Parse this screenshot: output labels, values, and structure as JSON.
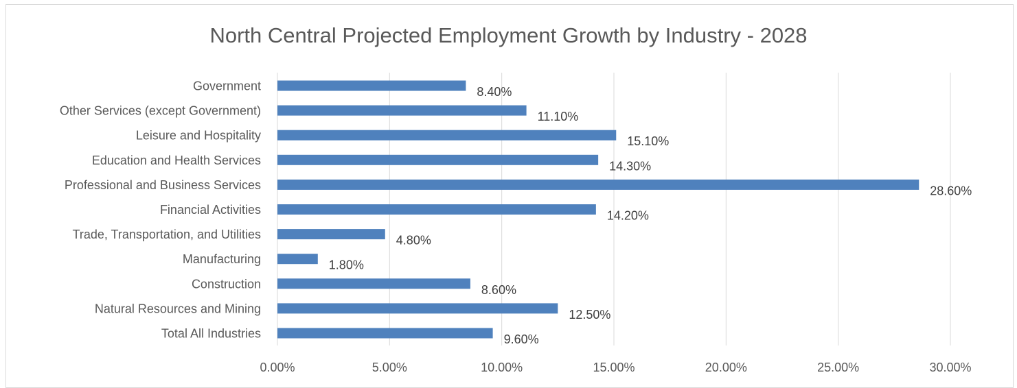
{
  "chart_data": {
    "type": "bar",
    "orientation": "horizontal",
    "title": "North Central Projected Employment Growth by Industry - 2028",
    "xlabel": "",
    "ylabel": "",
    "categories": [
      "Government",
      "Other Services (except Government)",
      "Leisure and Hospitality",
      "Education and Health Services",
      "Professional and Business Services",
      "Financial Activities",
      "Trade, Transportation, and Utilities",
      "Manufacturing",
      "Construction",
      "Natural Resources and Mining",
      "Total All Industries"
    ],
    "values": [
      8.4,
      11.1,
      15.1,
      14.3,
      28.6,
      14.2,
      4.8,
      1.8,
      8.6,
      12.5,
      9.6
    ],
    "data_labels": [
      "8.40%",
      "11.10%",
      "15.10%",
      "14.30%",
      "28.60%",
      "14.20%",
      "4.80%",
      "1.80%",
      "8.60%",
      "12.50%",
      "9.60%"
    ],
    "xlim": [
      0,
      30
    ],
    "x_ticks": [
      0,
      5,
      10,
      15,
      20,
      25,
      30
    ],
    "x_tick_labels": [
      "0.00%",
      "5.00%",
      "10.00%",
      "15.00%",
      "20.00%",
      "25.00%",
      "30.00%"
    ],
    "grid": true,
    "legend": "none",
    "bar_color": "#4f81bd",
    "grid_color": "#d9d9d9"
  }
}
